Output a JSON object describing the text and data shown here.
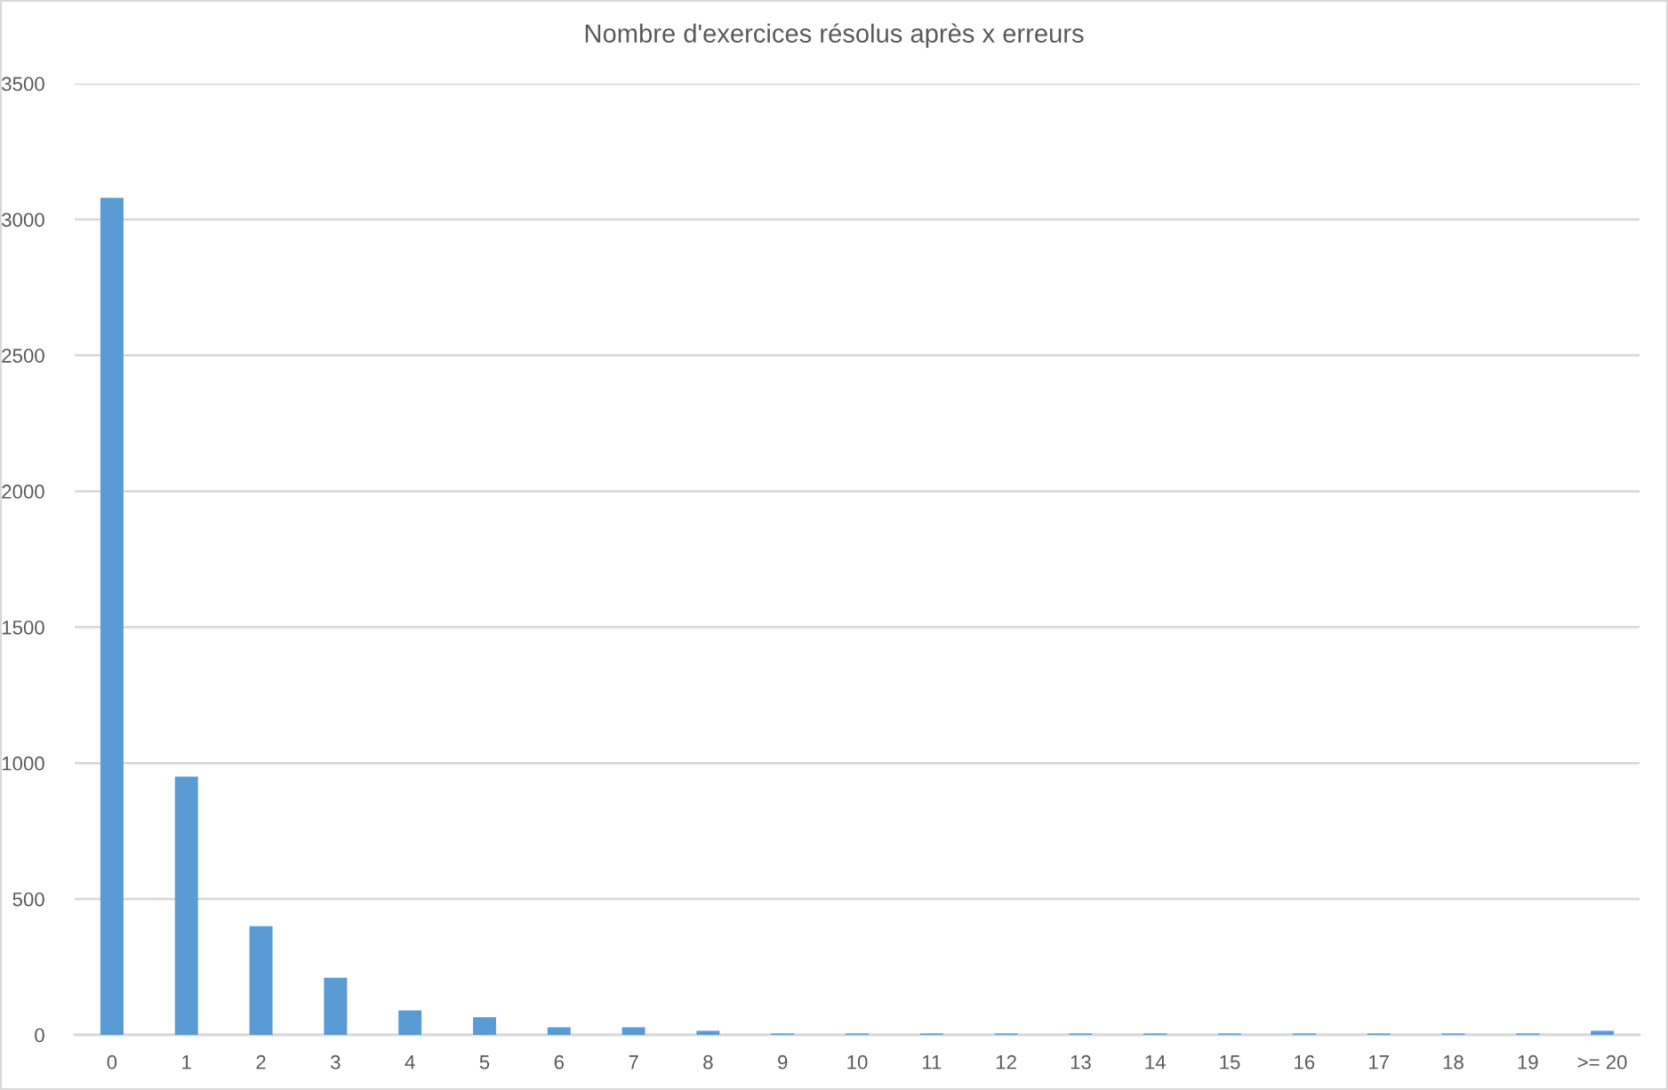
{
  "chart_data": {
    "type": "bar",
    "title": "Nombre d'exercices résolus après x erreurs",
    "categories": [
      "0",
      "1",
      "2",
      "3",
      "4",
      "5",
      "6",
      "7",
      "8",
      "9",
      "10",
      "11",
      "12",
      "13",
      "14",
      "15",
      "16",
      "17",
      "18",
      "19",
      ">= 20"
    ],
    "values": [
      3080,
      950,
      400,
      210,
      90,
      65,
      28,
      28,
      15,
      5,
      5,
      5,
      5,
      5,
      5,
      5,
      5,
      5,
      5,
      5,
      15
    ],
    "color": "#5b9bd5",
    "ylim": [
      0,
      3500
    ],
    "yticks": [
      0,
      500,
      1000,
      1500,
      2000,
      2500,
      3000,
      3500
    ],
    "grid": "y",
    "legend": false
  }
}
